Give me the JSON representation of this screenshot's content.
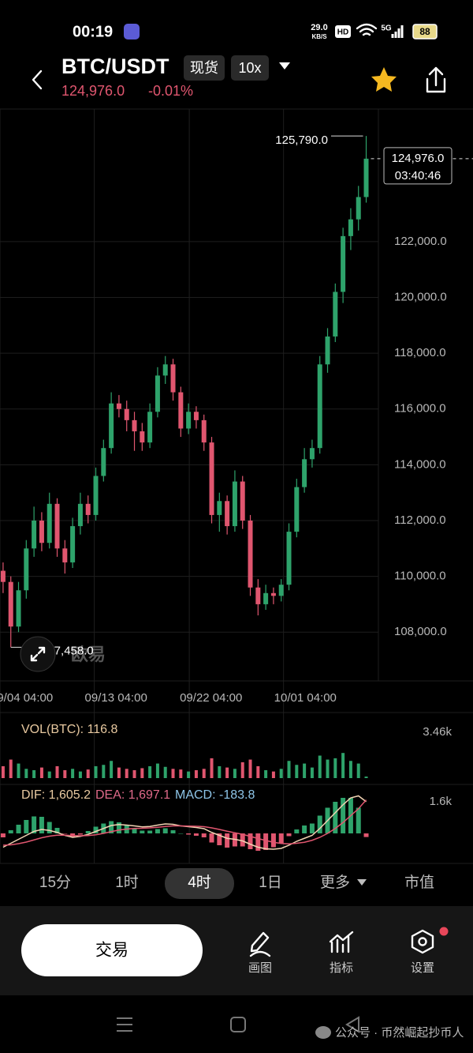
{
  "status_bar": {
    "time": "00:19",
    "net_speed": "29.0",
    "net_unit": "KB/S",
    "hd": "HD",
    "signal": "5G",
    "battery": "88"
  },
  "header": {
    "pair": "BTC/USDT",
    "market": "现货",
    "leverage": "10x",
    "price": "124,976.0",
    "change": "-0.01%"
  },
  "chart_data": {
    "type": "candlestick",
    "up_color": "#2ea36b",
    "down_color": "#e0566f",
    "ohlc": [
      [
        110200,
        110500,
        109400,
        109800
      ],
      [
        109800,
        110000,
        107458,
        108200
      ],
      [
        108200,
        109800,
        108000,
        109500
      ],
      [
        109500,
        111300,
        109200,
        111000
      ],
      [
        111000,
        112500,
        110700,
        112000
      ],
      [
        112000,
        112300,
        110900,
        111200
      ],
      [
        111200,
        113000,
        111000,
        112600
      ],
      [
        112600,
        112800,
        110700,
        111000
      ],
      [
        111000,
        111300,
        110100,
        110500
      ],
      [
        110500,
        112100,
        110300,
        111800
      ],
      [
        111800,
        113000,
        111500,
        112600
      ],
      [
        112600,
        112900,
        111900,
        112200
      ],
      [
        112200,
        113900,
        112000,
        113600
      ],
      [
        113600,
        114900,
        113400,
        114600
      ],
      [
        114600,
        116600,
        114400,
        116200
      ],
      [
        116200,
        116500,
        115700,
        116000
      ],
      [
        116000,
        116300,
        115200,
        115600
      ],
      [
        115600,
        115900,
        114500,
        115200
      ],
      [
        115200,
        115500,
        114500,
        114800
      ],
      [
        114800,
        116200,
        114600,
        115900
      ],
      [
        115900,
        117500,
        115700,
        117200
      ],
      [
        117200,
        117900,
        116900,
        117600
      ],
      [
        117600,
        117800,
        116300,
        116600
      ],
      [
        116600,
        116800,
        115000,
        115300
      ],
      [
        115300,
        116200,
        115100,
        115900
      ],
      [
        115900,
        116100,
        115300,
        115600
      ],
      [
        115600,
        115800,
        114500,
        114800
      ],
      [
        114800,
        115000,
        111900,
        112200
      ],
      [
        112200,
        113000,
        111600,
        112700
      ],
      [
        112700,
        112900,
        111500,
        111800
      ],
      [
        111800,
        113800,
        111600,
        113400
      ],
      [
        113400,
        113600,
        111700,
        112000
      ],
      [
        112000,
        112200,
        109300,
        109600
      ],
      [
        109600,
        109900,
        108600,
        109000
      ],
      [
        109000,
        109700,
        108800,
        109400
      ],
      [
        109400,
        109600,
        109000,
        109300
      ],
      [
        109300,
        109900,
        109100,
        109700
      ],
      [
        109700,
        111900,
        109500,
        111600
      ],
      [
        111600,
        113500,
        111400,
        113200
      ],
      [
        113200,
        114600,
        113000,
        114200
      ],
      [
        114200,
        114900,
        113900,
        114600
      ],
      [
        114600,
        117900,
        114400,
        117600
      ],
      [
        117600,
        118900,
        117300,
        118600
      ],
      [
        118600,
        120500,
        118400,
        120200
      ],
      [
        120200,
        122500,
        119800,
        122200
      ],
      [
        122200,
        123200,
        121700,
        122800
      ],
      [
        122800,
        124000,
        122400,
        123600
      ],
      [
        123600,
        125790,
        123400,
        124976
      ]
    ],
    "ylim": [
      106250,
      126700
    ],
    "yticks": [
      {
        "value": 108000,
        "label": "108,000.0"
      },
      {
        "value": 110000,
        "label": "110,000.0"
      },
      {
        "value": 112000,
        "label": "112,000.0"
      },
      {
        "value": 114000,
        "label": "114,000.0"
      },
      {
        "value": 116000,
        "label": "116,000.0"
      },
      {
        "value": 118000,
        "label": "118,000.0"
      },
      {
        "value": 120000,
        "label": "120,000.0"
      },
      {
        "value": 122000,
        "label": "122,000.0"
      }
    ],
    "xticks": [
      {
        "value": -0.4,
        "label": "09/04 04:00"
      },
      {
        "value": 11.8,
        "label": "09/13 04:00"
      },
      {
        "value": 24.1,
        "label": "09/22 04:00"
      },
      {
        "value": 36.3,
        "label": "10/01 04:00"
      }
    ],
    "high": {
      "value": 125790,
      "label": "125,790.0"
    },
    "low": {
      "value": 107458,
      "label": "107,458.0"
    },
    "last": {
      "value": 124976,
      "label": "124,976.0",
      "countdown": "03:40:46"
    },
    "watermark": "欧易"
  },
  "volume_chart": {
    "label": "VOL(BTC): 116.8",
    "values": [
      900,
      1400,
      1100,
      700,
      600,
      800,
      500,
      900,
      600,
      700,
      500,
      650,
      900,
      1000,
      1300,
      800,
      700,
      600,
      750,
      900,
      1100,
      850,
      700,
      650,
      500,
      600,
      700,
      1500,
      900,
      800,
      700,
      1200,
      1400,
      900,
      600,
      500,
      700,
      1300,
      1000,
      1100,
      800,
      1700,
      1400,
      1500,
      1900,
      1300,
      1100,
      116.8
    ],
    "ylim": [
      0,
      4000
    ],
    "yticks": [
      {
        "value": 3460,
        "label": "3.46k"
      }
    ]
  },
  "macd_chart": {
    "dif_label": "DIF: 1,605.2",
    "dea_label": "DEA: 1,697.1",
    "macd_label": "MACD: -183.8",
    "dif": [
      -700,
      -500,
      -300,
      -100,
      100,
      200,
      150,
      50,
      -100,
      -200,
      -150,
      -50,
      100,
      250,
      400,
      450,
      420,
      380,
      330,
      350,
      420,
      480,
      460,
      380,
      340,
      300,
      240,
      50,
      -100,
      -250,
      -300,
      -380,
      -550,
      -700,
      -780,
      -800,
      -760,
      -600,
      -400,
      -250,
      -100,
      250,
      650,
      1050,
      1450,
      1800,
      1900,
      1605.2
    ],
    "dea": [
      -600,
      -580,
      -520,
      -440,
      -330,
      -220,
      -140,
      -90,
      -90,
      -110,
      -120,
      -110,
      -70,
      0,
      90,
      170,
      220,
      250,
      260,
      280,
      310,
      350,
      380,
      380,
      370,
      360,
      340,
      280,
      200,
      110,
      30,
      -50,
      -150,
      -260,
      -360,
      -450,
      -510,
      -530,
      -500,
      -450,
      -350,
      -200,
      0,
      250,
      550,
      900,
      1250,
      1697.1
    ],
    "hist": [
      -200,
      160,
      440,
      680,
      860,
      840,
      580,
      280,
      -20,
      -180,
      -60,
      120,
      340,
      500,
      620,
      560,
      400,
      260,
      140,
      140,
      220,
      260,
      160,
      0,
      -60,
      -120,
      -200,
      -460,
      -600,
      -720,
      -660,
      -660,
      -800,
      -880,
      -840,
      -700,
      -500,
      -140,
      200,
      400,
      500,
      900,
      1300,
      1600,
      1800,
      1800,
      1300,
      -183.8
    ],
    "dif_color": "#f2d3b3",
    "dea_color": "#e0566f",
    "ylim": [
      -1400,
      2200
    ],
    "yticks": [
      {
        "value": 1600,
        "label": "1.6k"
      }
    ]
  },
  "timeframes": [
    "15分",
    "1时",
    "4时",
    "1日",
    "更多",
    "市值"
  ],
  "toolbar": {
    "trade": "交易",
    "draw": "画图",
    "indicators": "指标",
    "settings": "设置"
  },
  "footer": {
    "watermark": "公众号 · 币然崛起抄币人"
  }
}
